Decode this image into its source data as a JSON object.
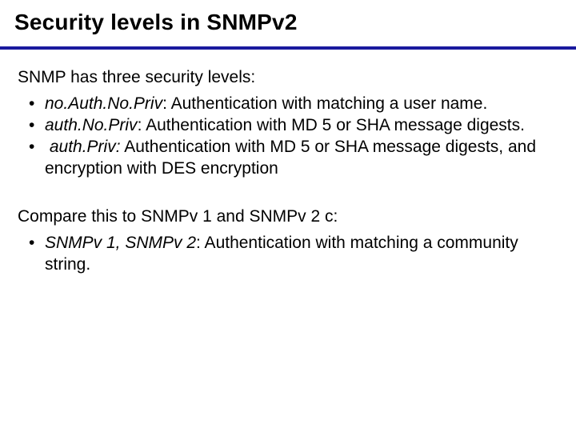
{
  "title": "Security levels in SNMPv2",
  "rule_color": "#1a1a9e",
  "section1": {
    "intro": "SNMP has three security levels:",
    "items": [
      {
        "term": "no.Auth.No.Priv",
        "desc": ": Authentication with matching a user name."
      },
      {
        "term": "auth.No.Priv",
        "desc": ": Authentication with MD 5 or SHA message digests."
      },
      {
        "term": "auth.Priv:",
        "desc": "Authentication with MD 5 or SHA message digests, and encryption with DES encryption",
        "lead_space": true
      }
    ]
  },
  "section2": {
    "intro": "Compare this to SNMPv 1 and SNMPv 2 c:",
    "items": [
      {
        "term": "SNMPv 1, SNMPv 2",
        "desc": ": Authentication with matching a community string."
      }
    ]
  },
  "font_sizes": {
    "title_pt": 28,
    "body_pt": 21
  },
  "colors": {
    "text": "#000000",
    "background": "#ffffff"
  }
}
